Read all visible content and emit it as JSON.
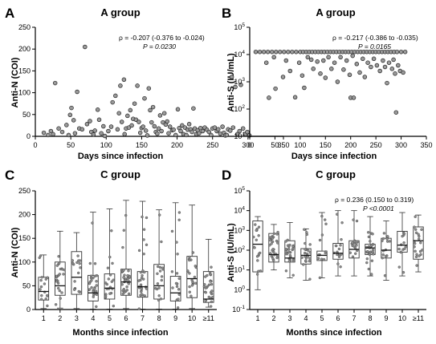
{
  "figure": {
    "panel_labels": [
      "A",
      "B",
      "C",
      "D"
    ]
  },
  "chart_data": [
    {
      "panel": "A",
      "type": "scatter",
      "title": "A group",
      "xlabel": "Days since infection",
      "ylabel": "Anti-N (COI)",
      "xlim": [
        0,
        350
      ],
      "ylim": [
        0,
        250
      ],
      "xticks": [
        0,
        50,
        100,
        150,
        200,
        250,
        300,
        350
      ],
      "yticks": [
        0,
        50,
        100,
        150,
        200,
        250
      ],
      "annotation": [
        "ρ = -0.207 (-0.376 to -0.024)",
        "P = 0.0230"
      ],
      "grid": false,
      "points": [
        [
          12,
          8
        ],
        [
          18,
          3
        ],
        [
          22,
          12
        ],
        [
          25,
          5
        ],
        [
          28,
          122
        ],
        [
          33,
          18
        ],
        [
          38,
          10
        ],
        [
          44,
          26
        ],
        [
          47,
          3
        ],
        [
          49,
          49
        ],
        [
          51,
          65
        ],
        [
          54,
          37
        ],
        [
          56,
          7
        ],
        [
          59,
          102
        ],
        [
          62,
          18
        ],
        [
          66,
          16
        ],
        [
          70,
          205
        ],
        [
          73,
          28
        ],
        [
          77,
          35
        ],
        [
          79,
          10
        ],
        [
          82,
          4
        ],
        [
          84,
          13
        ],
        [
          88,
          61
        ],
        [
          90,
          38
        ],
        [
          93,
          7
        ],
        [
          96,
          23
        ],
        [
          98,
          1
        ],
        [
          103,
          12
        ],
        [
          107,
          22
        ],
        [
          109,
          78
        ],
        [
          113,
          93
        ],
        [
          116,
          16
        ],
        [
          118,
          53
        ],
        [
          120,
          116
        ],
        [
          122,
          33
        ],
        [
          125,
          130
        ],
        [
          126,
          5
        ],
        [
          128,
          18
        ],
        [
          130,
          47
        ],
        [
          132,
          20
        ],
        [
          134,
          60
        ],
        [
          136,
          25
        ],
        [
          138,
          40
        ],
        [
          140,
          75
        ],
        [
          142,
          38
        ],
        [
          144,
          116
        ],
        [
          146,
          33
        ],
        [
          148,
          8
        ],
        [
          150,
          19
        ],
        [
          152,
          22
        ],
        [
          154,
          87
        ],
        [
          156,
          13
        ],
        [
          158,
          2
        ],
        [
          160,
          110
        ],
        [
          162,
          60
        ],
        [
          164,
          32
        ],
        [
          166,
          67
        ],
        [
          168,
          23
        ],
        [
          170,
          10
        ],
        [
          172,
          6
        ],
        [
          174,
          18
        ],
        [
          176,
          48
        ],
        [
          178,
          12
        ],
        [
          180,
          32
        ],
        [
          182,
          53
        ],
        [
          184,
          27
        ],
        [
          186,
          34
        ],
        [
          188,
          7
        ],
        [
          190,
          22
        ],
        [
          193,
          14
        ],
        [
          195,
          15
        ],
        [
          198,
          3
        ],
        [
          201,
          62
        ],
        [
          203,
          19
        ],
        [
          205,
          12
        ],
        [
          207,
          25
        ],
        [
          209,
          5
        ],
        [
          211,
          20
        ],
        [
          213,
          3
        ],
        [
          215,
          15
        ],
        [
          217,
          28
        ],
        [
          219,
          16
        ],
        [
          221,
          10
        ],
        [
          223,
          64
        ],
        [
          225,
          18
        ],
        [
          227,
          5
        ],
        [
          229,
          14
        ],
        [
          231,
          7
        ],
        [
          233,
          19
        ],
        [
          236,
          12
        ],
        [
          239,
          20
        ],
        [
          242,
          15
        ],
        [
          245,
          10
        ],
        [
          248,
          3
        ],
        [
          250,
          18
        ],
        [
          253,
          20
        ],
        [
          256,
          12
        ],
        [
          258,
          16
        ],
        [
          261,
          6
        ],
        [
          264,
          22
        ],
        [
          266,
          8
        ],
        [
          268,
          2
        ],
        [
          270,
          3
        ],
        [
          272,
          16
        ],
        [
          275,
          13
        ],
        [
          277,
          136
        ],
        [
          279,
          20
        ],
        [
          282,
          113
        ],
        [
          285,
          5
        ],
        [
          288,
          12
        ],
        [
          290,
          118
        ],
        [
          293,
          18
        ],
        [
          296,
          5
        ],
        [
          299,
          10
        ],
        [
          302,
          2
        ]
      ]
    },
    {
      "panel": "B",
      "type": "scatter",
      "title": "A group",
      "xlabel": "Days since infection",
      "ylabel": "Anti-S (IU/mL)",
      "xlim": [
        0,
        350
      ],
      "ylim": [
        10,
        100000
      ],
      "yscale": "log",
      "xticks": [
        0,
        50,
        100,
        150,
        200,
        250,
        300,
        350
      ],
      "yticks": [
        10,
        100,
        1000,
        10000,
        100000
      ],
      "ytick_labels": [
        "10^1",
        "10^2",
        "10^3",
        "10^4",
        "10^5"
      ],
      "annotation": [
        "ρ = -0.217 (-0.386 to -0.035)",
        "P = 0.0165"
      ],
      "grid": false,
      "points": [
        [
          12,
          12500
        ],
        [
          20,
          12500
        ],
        [
          28,
          12500
        ],
        [
          36,
          12500
        ],
        [
          44,
          12500
        ],
        [
          52,
          12500
        ],
        [
          60,
          12500
        ],
        [
          68,
          12500
        ],
        [
          76,
          12500
        ],
        [
          84,
          12500
        ],
        [
          92,
          12500
        ],
        [
          100,
          12500
        ],
        [
          106,
          12500
        ],
        [
          112,
          12500
        ],
        [
          118,
          12500
        ],
        [
          124,
          12500
        ],
        [
          130,
          12500
        ],
        [
          136,
          12500
        ],
        [
          142,
          12500
        ],
        [
          148,
          12500
        ],
        [
          154,
          12500
        ],
        [
          160,
          12500
        ],
        [
          166,
          12500
        ],
        [
          172,
          12500
        ],
        [
          178,
          12500
        ],
        [
          184,
          12500
        ],
        [
          190,
          12500
        ],
        [
          196,
          12500
        ],
        [
          202,
          12500
        ],
        [
          208,
          12500
        ],
        [
          214,
          12500
        ],
        [
          220,
          12500
        ],
        [
          226,
          12500
        ],
        [
          232,
          12500
        ],
        [
          238,
          12500
        ],
        [
          244,
          12500
        ],
        [
          250,
          12500
        ],
        [
          256,
          12500
        ],
        [
          262,
          12500
        ],
        [
          268,
          12500
        ],
        [
          274,
          12500
        ],
        [
          280,
          12500
        ],
        [
          286,
          12500
        ],
        [
          292,
          12500
        ],
        [
          300,
          12500
        ],
        [
          308,
          12500
        ],
        [
          33,
          5000
        ],
        [
          38,
          260
        ],
        [
          48,
          8000
        ],
        [
          51,
          560
        ],
        [
          66,
          1500
        ],
        [
          72,
          6000
        ],
        [
          80,
          2500
        ],
        [
          90,
          270
        ],
        [
          98,
          5000
        ],
        [
          104,
          1700
        ],
        [
          108,
          600
        ],
        [
          115,
          8000
        ],
        [
          122,
          6500
        ],
        [
          126,
          3000
        ],
        [
          134,
          5500
        ],
        [
          140,
          2000
        ],
        [
          146,
          6000
        ],
        [
          150,
          1400
        ],
        [
          156,
          8000
        ],
        [
          162,
          3000
        ],
        [
          168,
          5000
        ],
        [
          174,
          1000
        ],
        [
          180,
          8000
        ],
        [
          186,
          2800
        ],
        [
          192,
          6000
        ],
        [
          198,
          1800
        ],
        [
          200,
          260
        ],
        [
          204,
          9000
        ],
        [
          206,
          260
        ],
        [
          212,
          4500
        ],
        [
          218,
          2200
        ],
        [
          224,
          7000
        ],
        [
          228,
          1500
        ],
        [
          234,
          5000
        ],
        [
          240,
          3500
        ],
        [
          246,
          7000
        ],
        [
          252,
          4000
        ],
        [
          258,
          2500
        ],
        [
          264,
          6000
        ],
        [
          268,
          3500
        ],
        [
          272,
          900
        ],
        [
          276,
          5000
        ],
        [
          282,
          3000
        ],
        [
          285,
          6500
        ],
        [
          288,
          2000
        ],
        [
          290,
          75
        ],
        [
          294,
          4000
        ],
        [
          298,
          2500
        ],
        [
          304,
          2200
        ]
      ]
    },
    {
      "panel": "C",
      "type": "box",
      "title": "C group",
      "xlabel": "Months since infection",
      "ylabel": "Anti-N (COI)",
      "ylim": [
        0,
        250
      ],
      "yticks": [
        0,
        50,
        100,
        150,
        200,
        250
      ],
      "grid": false,
      "categories": [
        "1",
        "2",
        "3",
        "4",
        "5",
        "6",
        "7",
        "8",
        "9",
        "10",
        "≥11"
      ],
      "boxes": [
        {
          "min": 2,
          "q1": 20,
          "median": 38,
          "q3": 68,
          "max": 115
        },
        {
          "min": 3,
          "q1": 30,
          "median": 50,
          "q3": 100,
          "max": 165
        },
        {
          "min": 2,
          "q1": 32,
          "median": 68,
          "q3": 122,
          "max": 162
        },
        {
          "min": 1,
          "q1": 18,
          "median": 35,
          "q3": 72,
          "max": 205
        },
        {
          "min": 1,
          "q1": 22,
          "median": 45,
          "q3": 75,
          "max": 212
        },
        {
          "min": 2,
          "q1": 30,
          "median": 58,
          "q3": 85,
          "max": 230
        },
        {
          "min": 1,
          "q1": 26,
          "median": 48,
          "q3": 80,
          "max": 228
        },
        {
          "min": 1,
          "q1": 22,
          "median": 50,
          "q3": 95,
          "max": 210
        },
        {
          "min": 1,
          "q1": 18,
          "median": 35,
          "q3": 70,
          "max": 225
        },
        {
          "min": 2,
          "q1": 25,
          "median": 65,
          "q3": 112,
          "max": 220
        },
        {
          "min": 5,
          "q1": 15,
          "median": 22,
          "q3": 80,
          "max": 148
        }
      ]
    },
    {
      "panel": "D",
      "type": "box",
      "title": "C group",
      "xlabel": "Months since infection",
      "ylabel": "Anti-S (IU/mL)",
      "ylim": [
        0.1,
        100000
      ],
      "yscale": "log",
      "yticks": [
        0.1,
        1,
        10,
        100,
        1000,
        10000,
        100000
      ],
      "ytick_labels": [
        "10^-1",
        "10^0",
        "10^1",
        "10^2",
        "10^3",
        "10^4",
        "10^5"
      ],
      "annotation": [
        "ρ = 0.236 (0.150 to 0.319)",
        "P <0.0001"
      ],
      "grid": false,
      "categories": [
        "1",
        "2",
        "3",
        "4",
        "5",
        "6",
        "7",
        "8",
        "9",
        "10",
        "≥11"
      ],
      "boxes": [
        {
          "min": 1.0,
          "q1": 8,
          "median": 200,
          "q3": 3000,
          "max": 5000
        },
        {
          "min": 10,
          "q1": 25,
          "median": 60,
          "q3": 700,
          "max": 2000
        },
        {
          "min": 4,
          "q1": 25,
          "median": 40,
          "q3": 300,
          "max": 2500
        },
        {
          "min": 3,
          "q1": 20,
          "median": 55,
          "q3": 120,
          "max": 1200
        },
        {
          "min": 4,
          "q1": 30,
          "median": 55,
          "q3": 90,
          "max": 8000
        },
        {
          "min": 5,
          "q1": 35,
          "median": 70,
          "q3": 220,
          "max": 10000
        },
        {
          "min": 5,
          "q1": 40,
          "median": 110,
          "q3": 300,
          "max": 10000
        },
        {
          "min": 5,
          "q1": 60,
          "median": 130,
          "q3": 200,
          "max": 5000
        },
        {
          "min": 3,
          "q1": 40,
          "median": 100,
          "q3": 400,
          "max": 3000
        },
        {
          "min": 5,
          "q1": 80,
          "median": 180,
          "q3": 900,
          "max": 8000
        },
        {
          "min": 8,
          "q1": 35,
          "median": 300,
          "q3": 1500,
          "max": 6000
        }
      ]
    }
  ]
}
